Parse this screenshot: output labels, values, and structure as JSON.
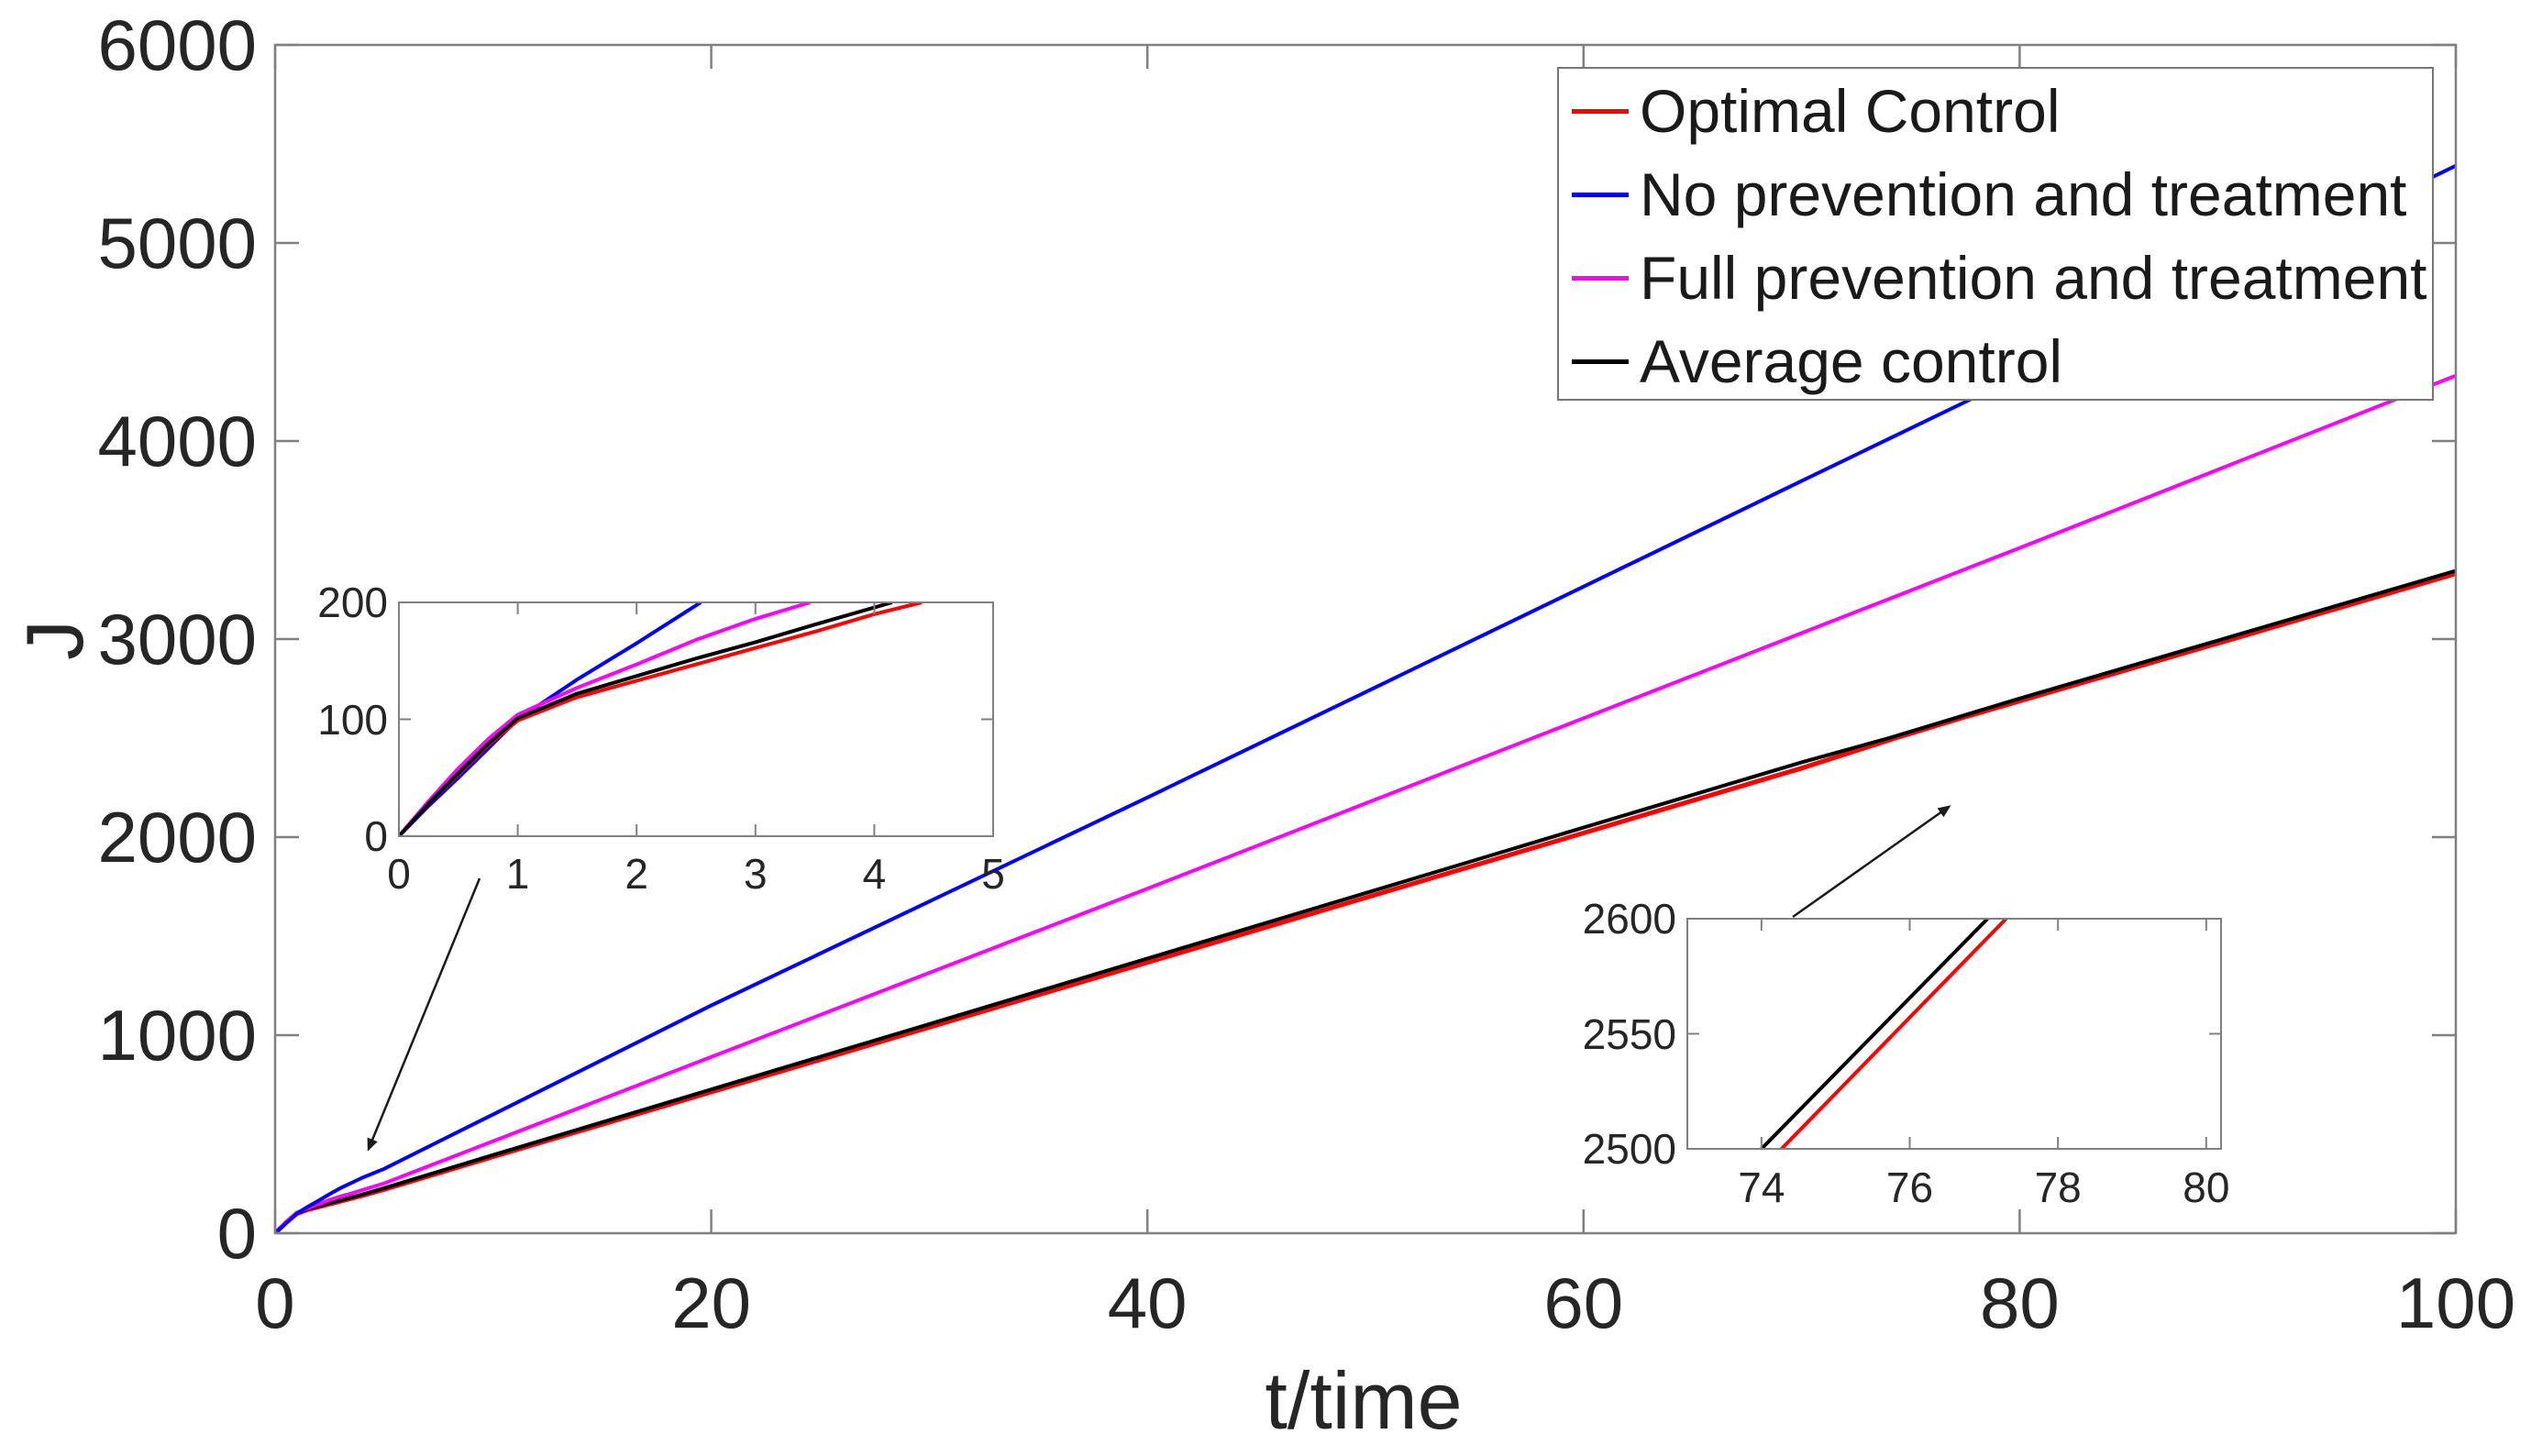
{
  "figure": {
    "xlabel": "t/time",
    "ylabel": "J",
    "background": "#ffffff",
    "text_color": "#262626",
    "axis_color": "#808080"
  },
  "legend": {
    "position": "top-right",
    "entries": [
      {
        "label": "Optimal Control",
        "color": "#ff0000"
      },
      {
        "label": "No prevention and treatment",
        "color": "#0000ff"
      },
      {
        "label": "Full prevention and treatment",
        "color": "#ff00ff"
      },
      {
        "label": "Average control",
        "color": "#000000"
      }
    ]
  },
  "chart_data": [
    {
      "id": "main",
      "type": "line",
      "title": "",
      "xlabel": "t/time",
      "ylabel": "J",
      "xlim": [
        0,
        100
      ],
      "ylim": [
        0,
        6000
      ],
      "x_ticks": [
        0,
        20,
        40,
        60,
        80,
        100
      ],
      "y_ticks": [
        0,
        1000,
        2000,
        3000,
        4000,
        5000,
        6000
      ],
      "grid": false,
      "legend_position": "top-right",
      "series": [
        {
          "name": "Optimal Control",
          "color": "#ff0000",
          "width": 5,
          "points": [
            [
              0,
              0
            ],
            [
              0.5,
              53
            ],
            [
              1,
              99
            ],
            [
              1.5,
              119
            ],
            [
              2,
              133
            ],
            [
              2.5,
              147
            ],
            [
              3,
              161
            ],
            [
              4,
              190
            ],
            [
              5,
              221
            ],
            [
              10,
              386
            ],
            [
              20,
              713
            ],
            [
              30,
              1040
            ],
            [
              40,
              1367
            ],
            [
              50,
              1694
            ],
            [
              60,
              2021
            ],
            [
              70,
              2348
            ],
            [
              74.3,
              2500
            ],
            [
              77.3,
              2600
            ],
            [
              80,
              2687
            ],
            [
              90,
              3008
            ],
            [
              100,
              3330
            ]
          ]
        },
        {
          "name": "Average control",
          "color": "#000000",
          "width": 4,
          "points": [
            [
              0,
              0
            ],
            [
              0.5,
              54
            ],
            [
              1,
              101
            ],
            [
              1.5,
              122
            ],
            [
              2,
              137
            ],
            [
              2.5,
              152
            ],
            [
              3,
              166
            ],
            [
              4,
              196
            ],
            [
              5,
              228
            ],
            [
              10,
              395
            ],
            [
              20,
              726
            ],
            [
              30,
              1056
            ],
            [
              40,
              1387
            ],
            [
              50,
              1717
            ],
            [
              60,
              2048
            ],
            [
              70,
              2378
            ],
            [
              74,
              2500
            ],
            [
              77,
              2600
            ],
            [
              80,
              2700
            ],
            [
              90,
              3022
            ],
            [
              100,
              3345
            ]
          ]
        },
        {
          "name": "Full prevention and treatment",
          "color": "#ff00ff",
          "width": 4,
          "points": [
            [
              0,
              0
            ],
            [
              0.5,
              58
            ],
            [
              1,
              104
            ],
            [
              1.5,
              127
            ],
            [
              2,
              147
            ],
            [
              2.5,
              168
            ],
            [
              3,
              186
            ],
            [
              3.5,
              201
            ],
            [
              4,
              218
            ],
            [
              5,
              252
            ],
            [
              10,
              465
            ],
            [
              20,
              890
            ],
            [
              30,
              1315
            ],
            [
              40,
              1740
            ],
            [
              50,
              2170
            ],
            [
              60,
              2600
            ],
            [
              70,
              3030
            ],
            [
              80,
              3460
            ],
            [
              90,
              3895
            ],
            [
              100,
              4330
            ]
          ]
        },
        {
          "name": "No prevention and treatment",
          "color": "#0000ff",
          "width": 4,
          "points": [
            [
              0,
              0
            ],
            [
              0.5,
              50
            ],
            [
              1,
              100
            ],
            [
              1.5,
              134
            ],
            [
              2,
              165
            ],
            [
              2.5,
              197
            ],
            [
              3,
              228
            ],
            [
              4,
              280
            ],
            [
              5,
              325
            ],
            [
              10,
              600
            ],
            [
              20,
              1150
            ],
            [
              30,
              1675
            ],
            [
              40,
              2200
            ],
            [
              50,
              2732
            ],
            [
              60,
              3265
            ],
            [
              70,
              3798
            ],
            [
              80,
              4330
            ],
            [
              90,
              4860
            ],
            [
              100,
              5390
            ]
          ]
        }
      ]
    },
    {
      "id": "inset-early",
      "type": "line",
      "title": "",
      "xlabel": "",
      "ylabel": "",
      "xlim": [
        0,
        5
      ],
      "ylim": [
        0,
        200
      ],
      "x_ticks": [
        0,
        1,
        2,
        3,
        4,
        5
      ],
      "y_ticks": [
        0,
        100,
        200
      ],
      "grid": false,
      "series": [
        {
          "name": "No prevention and treatment",
          "color": "#0000ff",
          "width": 4,
          "points": [
            [
              0,
              0
            ],
            [
              0.25,
              26
            ],
            [
              0.5,
              50
            ],
            [
              0.75,
              75
            ],
            [
              1,
              100
            ],
            [
              1.25,
              117
            ],
            [
              1.5,
              134
            ],
            [
              2,
              165
            ],
            [
              2.54,
              200
            ]
          ]
        },
        {
          "name": "Full prevention and treatment",
          "color": "#ff00ff",
          "width": 4,
          "points": [
            [
              0,
              0
            ],
            [
              0.25,
              30
            ],
            [
              0.5,
              58
            ],
            [
              0.75,
              83
            ],
            [
              1,
              104
            ],
            [
              1.5,
              127
            ],
            [
              2,
              147
            ],
            [
              2.5,
              168
            ],
            [
              3,
              186
            ],
            [
              3.46,
              200
            ]
          ]
        },
        {
          "name": "Optimal Control",
          "color": "#ff0000",
          "width": 4,
          "points": [
            [
              0,
              0
            ],
            [
              0.25,
              28
            ],
            [
              0.5,
              53
            ],
            [
              0.75,
              78
            ],
            [
              1,
              99
            ],
            [
              1.5,
              119
            ],
            [
              2,
              133
            ],
            [
              2.5,
              147
            ],
            [
              3,
              161
            ],
            [
              3.5,
              175
            ],
            [
              4,
              190
            ],
            [
              4.4,
              200
            ]
          ]
        },
        {
          "name": "Average control",
          "color": "#000000",
          "width": 4,
          "points": [
            [
              0,
              0
            ],
            [
              0.25,
              28
            ],
            [
              0.5,
              54
            ],
            [
              0.75,
              79
            ],
            [
              1,
              101
            ],
            [
              1.5,
              122
            ],
            [
              2,
              137
            ],
            [
              2.5,
              152
            ],
            [
              3,
              166
            ],
            [
              3.5,
              181
            ],
            [
              4.15,
              200
            ]
          ]
        }
      ]
    },
    {
      "id": "inset-crossing",
      "type": "line",
      "title": "",
      "xlabel": "",
      "ylabel": "",
      "xlim": [
        73,
        80.2
      ],
      "ylim": [
        2500,
        2600
      ],
      "x_ticks": [
        74,
        76,
        78,
        80
      ],
      "y_ticks": [
        2500,
        2550,
        2600
      ],
      "grid": false,
      "series": [
        {
          "name": "Optimal Control",
          "color": "#ff0000",
          "width": 4,
          "points": [
            [
              74.27,
              2500
            ],
            [
              77.3,
              2600
            ]
          ]
        },
        {
          "name": "Average control",
          "color": "#000000",
          "width": 4,
          "points": [
            [
              74.0,
              2500
            ],
            [
              77.05,
              2600
            ]
          ]
        }
      ]
    }
  ]
}
